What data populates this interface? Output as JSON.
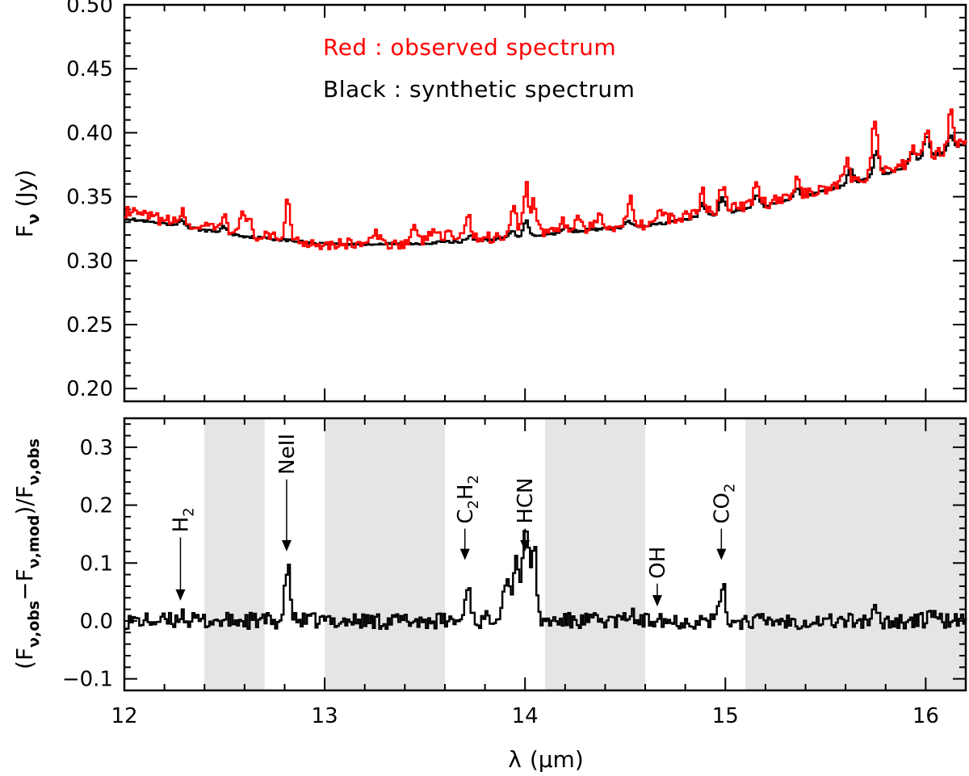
{
  "chart_data": [
    {
      "type": "line",
      "panel": "top",
      "ylabel": "Fν (Jy)",
      "ylabel_main": "F",
      "ylabel_sub": "ν",
      "ylabel_unit": "(Jy)",
      "xlim": [
        12,
        16.2
      ],
      "ylim": [
        0.19,
        0.5
      ],
      "yticks": [
        0.2,
        0.25,
        0.3,
        0.35,
        0.4,
        0.45,
        0.5
      ],
      "ytick_labels": [
        "0.20",
        "0.25",
        "0.30",
        "0.35",
        "0.40",
        "0.45",
        "0.50"
      ],
      "legend": [
        {
          "text": "Red : observed spectrum",
          "color": "#ff0000"
        },
        {
          "text": "Black : synthetic spectrum",
          "color": "#000000"
        }
      ],
      "series": [
        {
          "name": "synthetic spectrum",
          "color": "#000000",
          "baseline": [
            [
              12.0,
              0.333
            ],
            [
              12.3,
              0.326
            ],
            [
              12.6,
              0.319
            ],
            [
              13.0,
              0.313
            ],
            [
              13.4,
              0.313
            ],
            [
              13.8,
              0.316
            ],
            [
              14.0,
              0.319
            ],
            [
              14.3,
              0.324
            ],
            [
              14.6,
              0.327
            ],
            [
              14.9,
              0.335
            ],
            [
              15.2,
              0.343
            ],
            [
              15.5,
              0.355
            ],
            [
              15.8,
              0.368
            ],
            [
              16.0,
              0.38
            ],
            [
              16.2,
              0.392
            ]
          ],
          "features": [
            [
              12.28,
              0.006
            ],
            [
              12.49,
              0.005
            ],
            [
              13.72,
              0.004
            ],
            [
              13.93,
              0.005
            ],
            [
              14.0,
              0.012
            ],
            [
              14.2,
              0.004
            ],
            [
              14.51,
              0.005
            ],
            [
              14.88,
              0.01
            ],
            [
              14.98,
              0.012
            ],
            [
              15.15,
              0.01
            ],
            [
              15.35,
              0.008
            ],
            [
              15.62,
              0.012
            ],
            [
              15.75,
              0.02
            ],
            [
              15.93,
              0.01
            ],
            [
              16.0,
              0.018
            ],
            [
              16.12,
              0.01
            ]
          ]
        },
        {
          "name": "observed spectrum",
          "color": "#ff0000",
          "baseline": [
            [
              12.0,
              0.338
            ],
            [
              12.3,
              0.328
            ],
            [
              12.6,
              0.32
            ],
            [
              13.0,
              0.313
            ],
            [
              13.4,
              0.314
            ],
            [
              13.8,
              0.318
            ],
            [
              14.0,
              0.322
            ],
            [
              14.3,
              0.325
            ],
            [
              14.6,
              0.329
            ],
            [
              14.9,
              0.338
            ],
            [
              15.2,
              0.345
            ],
            [
              15.5,
              0.357
            ],
            [
              15.8,
              0.37
            ],
            [
              16.0,
              0.381
            ],
            [
              16.2,
              0.393
            ]
          ],
          "features": [
            [
              12.28,
              0.01
            ],
            [
              12.49,
              0.012
            ],
            [
              12.58,
              0.02
            ],
            [
              12.62,
              0.01
            ],
            [
              12.81,
              0.032
            ],
            [
              13.25,
              0.008
            ],
            [
              13.44,
              0.01
            ],
            [
              13.52,
              0.008
            ],
            [
              13.56,
              0.008
            ],
            [
              13.62,
              0.008
            ],
            [
              13.71,
              0.022
            ],
            [
              13.94,
              0.025
            ],
            [
              14.0,
              0.038
            ],
            [
              14.04,
              0.024
            ],
            [
              14.18,
              0.008
            ],
            [
              14.26,
              0.01
            ],
            [
              14.37,
              0.012
            ],
            [
              14.52,
              0.025
            ],
            [
              14.67,
              0.008
            ],
            [
              14.88,
              0.018
            ],
            [
              14.98,
              0.02
            ],
            [
              15.15,
              0.018
            ],
            [
              15.35,
              0.012
            ],
            [
              15.6,
              0.018
            ],
            [
              15.74,
              0.045
            ],
            [
              15.93,
              0.015
            ],
            [
              16.0,
              0.022
            ],
            [
              16.12,
              0.028
            ]
          ]
        }
      ]
    },
    {
      "type": "line",
      "panel": "bottom",
      "ylabel": "(Fν,obs − Fν,mod)/Fν,obs",
      "ylabel_parts": {
        "open": "(F",
        "sub1": "ν,obs",
        "minus": "−F",
        "sub2": "ν,mod",
        "close": ")/F",
        "sub3": "ν,obs"
      },
      "xlabel": "λ (μm)",
      "xlabel_parts": {
        "lambda": "λ",
        "unit": "(μm)"
      },
      "xlim": [
        12,
        16.2
      ],
      "ylim": [
        -0.12,
        0.35
      ],
      "xticks": [
        12,
        13,
        14,
        15,
        16
      ],
      "xtick_labels": [
        "12",
        "13",
        "14",
        "15",
        "16"
      ],
      "yticks": [
        -0.1,
        0.0,
        0.1,
        0.2,
        0.3
      ],
      "ytick_labels": [
        "−0.1",
        "0.0",
        "0.1",
        "0.2",
        "0.3"
      ],
      "shaded_regions": [
        [
          12.4,
          12.7
        ],
        [
          13.0,
          13.6
        ],
        [
          14.1,
          14.6
        ],
        [
          15.1,
          16.2
        ]
      ],
      "series": [
        {
          "name": "residual",
          "color": "#000000",
          "features": [
            [
              12.28,
              0.015
            ],
            [
              12.81,
              0.095
            ],
            [
              13.71,
              0.065
            ],
            [
              13.9,
              0.05
            ],
            [
              13.95,
              0.07
            ],
            [
              14.0,
              0.115
            ],
            [
              14.04,
              0.08
            ],
            [
              14.52,
              0.015
            ],
            [
              14.66,
              0.015
            ],
            [
              14.98,
              0.065
            ],
            [
              15.74,
              0.015
            ],
            [
              16.02,
              0.02
            ]
          ]
        }
      ],
      "annotations": [
        {
          "label": "H",
          "sub": "2",
          "x": 12.28,
          "arrow_tip": 0.035
        },
        {
          "label": "NeII",
          "sub": "",
          "x": 12.81,
          "arrow_tip": 0.12
        },
        {
          "label": "C",
          "sub": "2",
          "label2": "H",
          "sub2": "2",
          "x": 13.7,
          "arrow_tip": 0.105
        },
        {
          "label": "HCN",
          "sub": "",
          "x": 14.0,
          "arrow_tip": 0.12
        },
        {
          "label": "OH",
          "sub": "",
          "x": 14.66,
          "arrow_tip": 0.025
        },
        {
          "label": "CO",
          "sub": "2",
          "x": 14.98,
          "arrow_tip": 0.105
        }
      ]
    }
  ]
}
